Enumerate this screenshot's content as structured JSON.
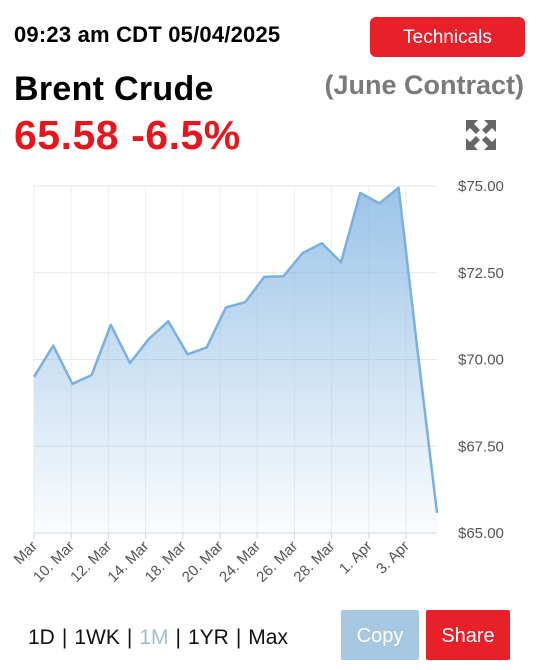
{
  "header": {
    "timestamp": "09:23 am CDT 05/04/2025",
    "technicals_label": "Technicals",
    "commodity": "Brent Crude",
    "contract": "(June Contract)",
    "price": "65.58",
    "change": "-6.5%",
    "expand_icon": "expand-arrows-icon"
  },
  "ranges": [
    {
      "label": "1D",
      "active": false
    },
    {
      "label": "1WK",
      "active": false
    },
    {
      "label": "1M",
      "active": true
    },
    {
      "label": "1YR",
      "active": false
    },
    {
      "label": "Max",
      "active": false
    }
  ],
  "actions": {
    "copy_label": "Copy",
    "share_label": "Share"
  },
  "colors": {
    "accent": "#e8202a",
    "price": "#e8161c",
    "line": "#7ab0e0",
    "copy": "#a7c8e2"
  },
  "chart_data": {
    "type": "area",
    "ylim": [
      65,
      75
    ],
    "y_ticks": [
      "$75.00",
      "$72.50",
      "$70.00",
      "$67.50",
      "$65.00"
    ],
    "x_tick_labels": [
      "Mar",
      "10. Mar",
      "12. Mar",
      "14. Mar",
      "18. Mar",
      "20. Mar",
      "24. Mar",
      "26. Mar",
      "28. Mar",
      "1. Apr",
      "3. Apr"
    ],
    "grid": true,
    "series": [
      {
        "values": [
          69.5,
          70.4,
          69.3,
          69.55,
          71.0,
          69.9,
          70.6,
          71.1,
          70.15,
          70.35,
          71.5,
          71.65,
          72.38,
          72.4,
          73.07,
          73.35,
          72.8,
          74.8,
          74.5,
          74.95,
          70.2,
          65.58
        ]
      }
    ]
  }
}
